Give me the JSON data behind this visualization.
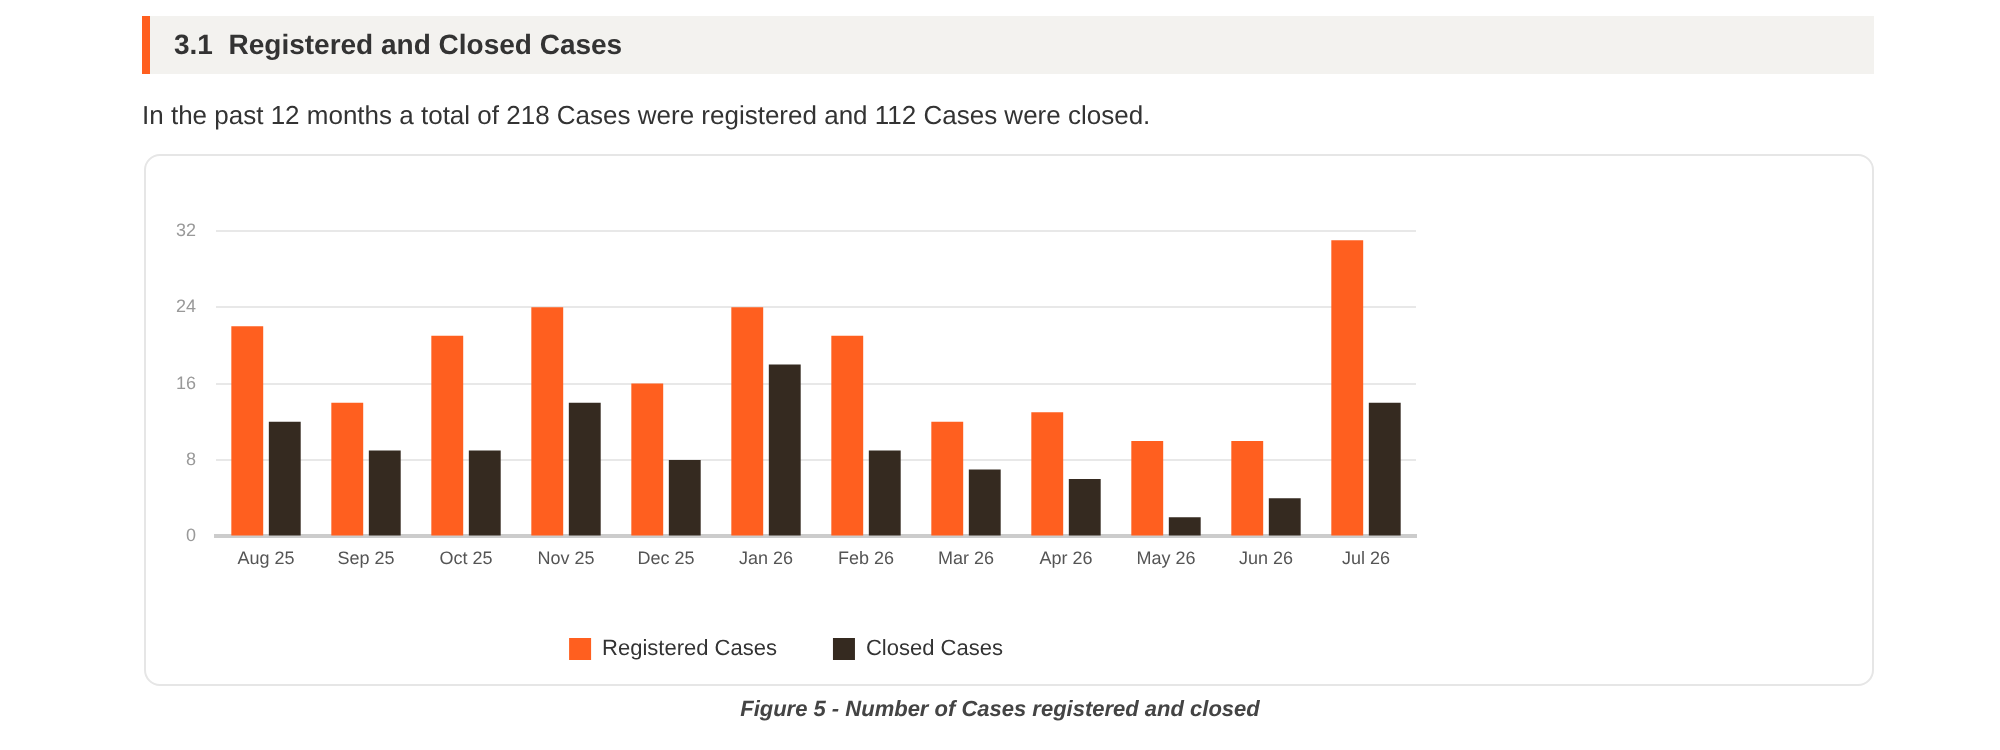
{
  "chart_data": {
    "type": "bar",
    "title": "3.1  Registered and Closed Cases",
    "subtitle": "In the past 12 months a total of 218 Cases were registered and 112 Cases were closed.",
    "categories": [
      "Aug 25",
      "Sep 25",
      "Oct 25",
      "Nov 25",
      "Dec 25",
      "Jan 26",
      "Feb 26",
      "Mar 26",
      "Apr 26",
      "May 26",
      "Jun 26",
      "Jul 26"
    ],
    "series": [
      {
        "name": "Registered Cases",
        "color": "#ff5f1f",
        "values": [
          22,
          14,
          21,
          24,
          16,
          24,
          21,
          12,
          13,
          10,
          10,
          31
        ]
      },
      {
        "name": "Closed Cases",
        "color": "#352a20",
        "values": [
          12,
          9,
          9,
          14,
          8,
          18,
          9,
          7,
          6,
          2,
          4,
          14
        ]
      }
    ],
    "ylim": [
      0,
      32
    ],
    "yticks": [
      0,
      8,
      16,
      24,
      32
    ],
    "grid": "y",
    "legend": "bottom",
    "annotations": [
      "Figure 5 - Number of Cases registered and closed"
    ]
  }
}
